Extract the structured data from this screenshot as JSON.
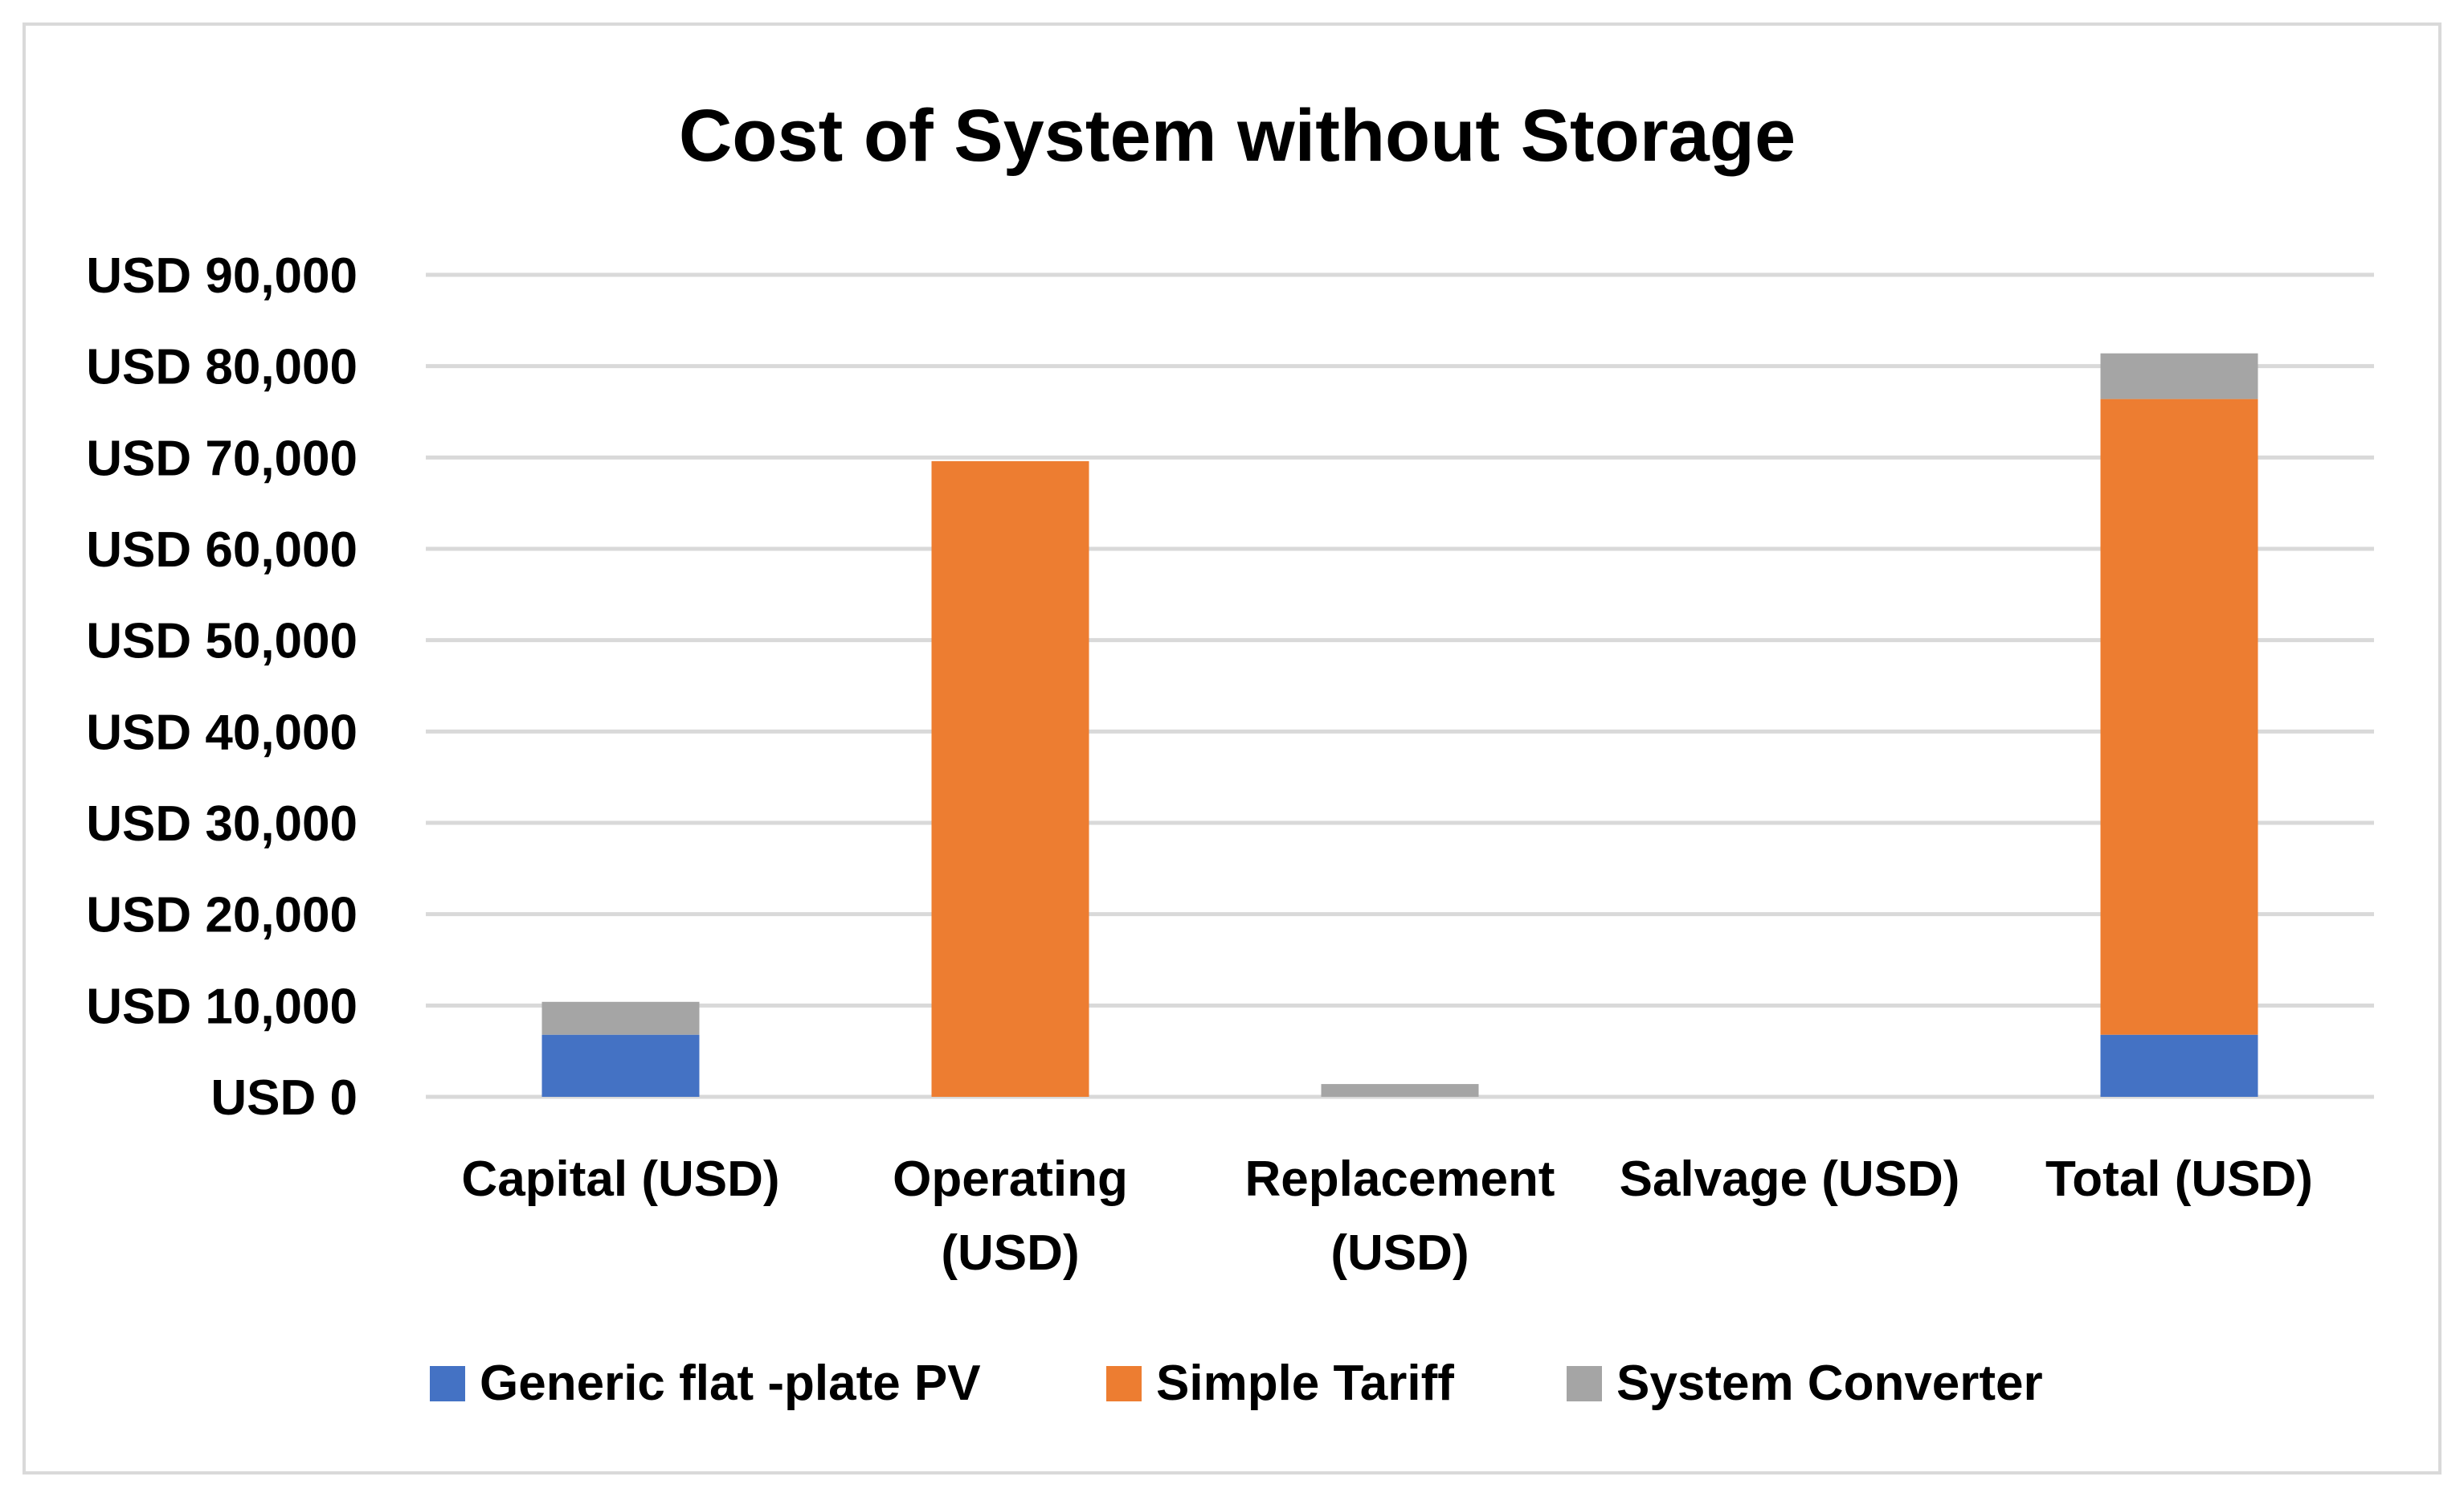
{
  "chart_data": {
    "type": "bar",
    "stacked": true,
    "title": "Cost of System without Storage",
    "xlabel": "",
    "ylabel": "",
    "categories": [
      [
        "Capital (USD)"
      ],
      [
        "Operating",
        "(USD)"
      ],
      [
        "Replacement",
        "(USD)"
      ],
      [
        "Salvage (USD)"
      ],
      [
        "Total (USD)"
      ]
    ],
    "series": [
      {
        "name": "Generic flat -plate PV",
        "color": "#4472c4",
        "values": [
          6800,
          0,
          0,
          0,
          6800
        ]
      },
      {
        "name": "Simple Tariff",
        "color": "#ed7d31",
        "values": [
          0,
          69600,
          0,
          0,
          69600
        ]
      },
      {
        "name": "System Converter",
        "color": "#a5a5a5",
        "values": [
          3600,
          0,
          1400,
          0,
          5000
        ]
      }
    ],
    "ylim": [
      0,
      90000
    ],
    "yticks": [
      0,
      10000,
      20000,
      30000,
      40000,
      50000,
      60000,
      70000,
      80000,
      90000
    ],
    "ytick_labels": [
      "USD 0",
      "USD 10,000",
      "USD 20,000",
      "USD 30,000",
      "USD 40,000",
      "USD 50,000",
      "USD 60,000",
      "USD 70,000",
      "USD 80,000",
      "USD 90,000"
    ],
    "grid": true,
    "legend_position": "bottom"
  }
}
